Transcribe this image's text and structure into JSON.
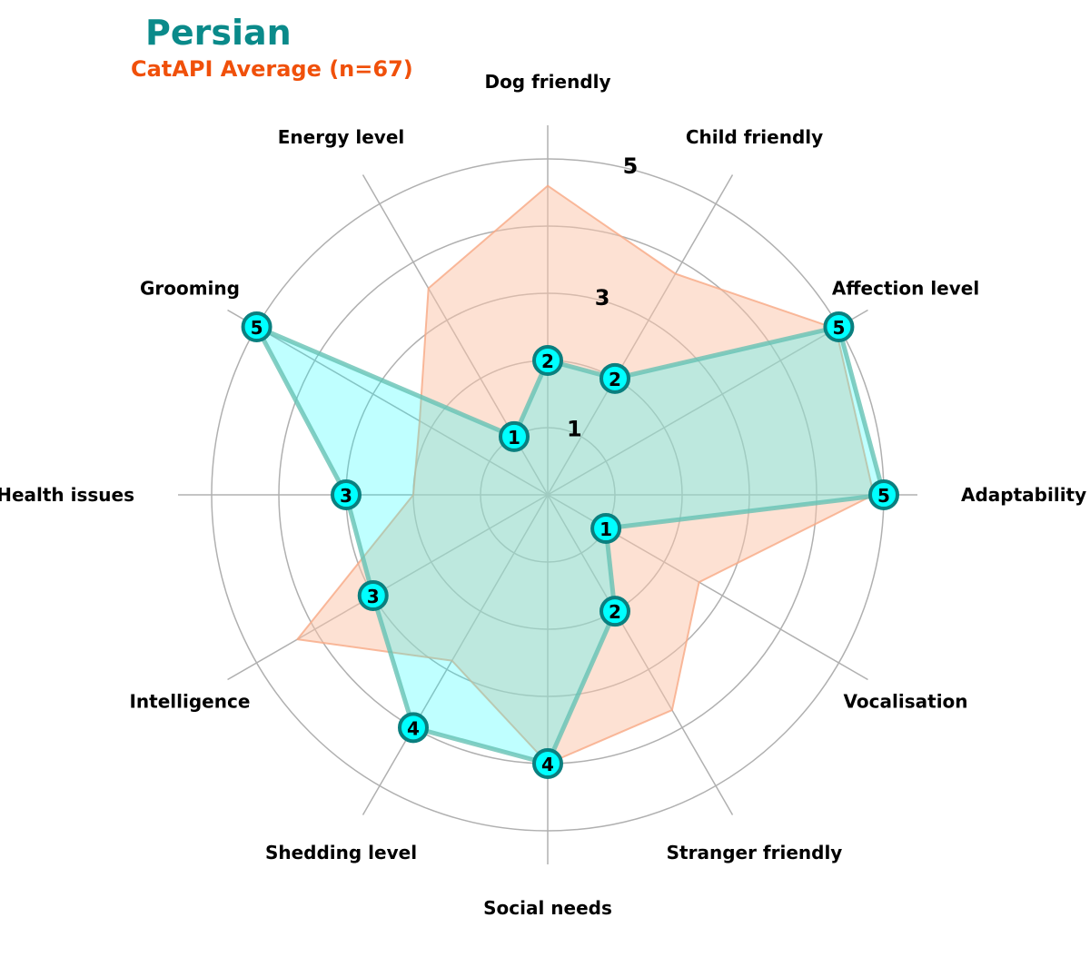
{
  "chart_data": {
    "type": "radar",
    "title": "Persian",
    "subtitle": "CatAPI Average (n=67)",
    "axes": [
      "Adaptability",
      "Affection level",
      "Child friendly",
      "Dog friendly",
      "Energy level",
      "Grooming",
      "Health issues",
      "Intelligence",
      "Shedding level",
      "Social needs",
      "Stranger friendly",
      "Vocalisation"
    ],
    "rlim": [
      0,
      5.5
    ],
    "ticks": [
      {
        "value": 1,
        "label": "1"
      },
      {
        "value": 2,
        "label": ""
      },
      {
        "value": 3,
        "label": "3"
      },
      {
        "value": 4,
        "label": ""
      },
      {
        "value": 5,
        "label": "5"
      }
    ],
    "grid": true,
    "series": [
      {
        "values": [
          4.85,
          4.95,
          3.8,
          4.6,
          3.55,
          2.2,
          2.0,
          4.3,
          2.85,
          4.0,
          3.7,
          2.6
        ]
      },
      {
        "values": [
          5,
          5,
          2,
          2,
          1,
          5,
          3,
          3,
          4,
          4,
          2,
          1
        ],
        "labels": [
          "5",
          "5",
          "2",
          "2",
          "1",
          "5",
          "3",
          "3",
          "4",
          "4",
          "2",
          "1"
        ]
      }
    ],
    "colors": {
      "title": "#0a8a8a",
      "subtitle": "#f0500a",
      "average_fill": "#fcc3a8",
      "average_edge": "#f7a985",
      "breed_fill": "#00ffff",
      "breed_edge": "#66c2b4",
      "marker_fill": "#00ffff",
      "marker_edge": "#0a7f7f",
      "grid": "#b0b0b0"
    }
  }
}
